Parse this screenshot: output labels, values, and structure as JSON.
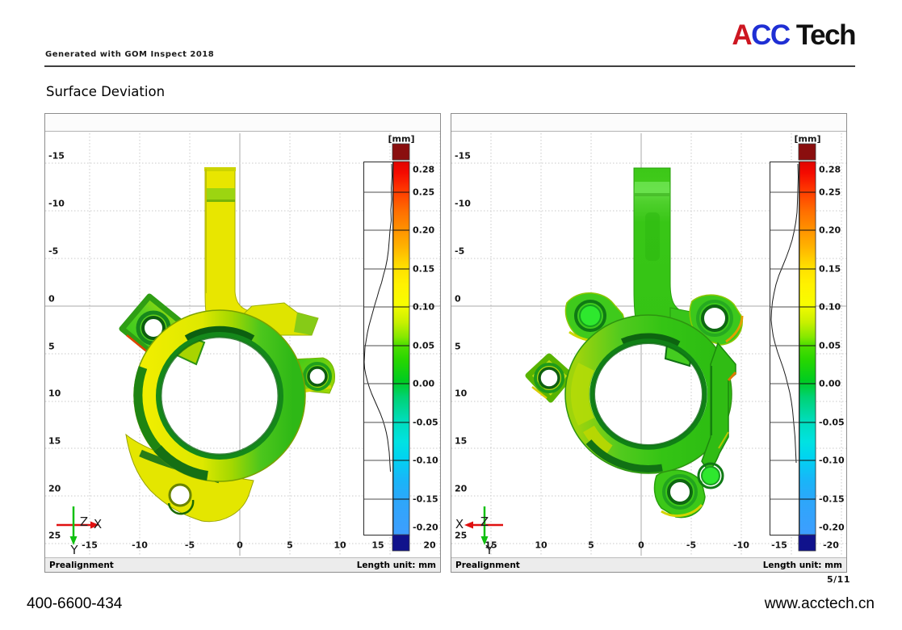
{
  "header": {
    "note": "Generated with GOM Inspect 2018"
  },
  "logo": {
    "part_a": "A",
    "part_cc": "CC",
    "part_tech": " Tech",
    "color_a": "#cd1621",
    "color_cc": "#1f2fd4",
    "color_tech": "#111111"
  },
  "title": "Surface Deviation",
  "footer": {
    "phone": "400-6600-434",
    "website": "www.acctech.cn",
    "page_number": "5/11"
  },
  "colorbar": {
    "unit": "[mm]",
    "ticks": [
      "0.28",
      "0.25",
      "0.20",
      "0.15",
      "0.10",
      "0.05",
      "0.00",
      "-0.05",
      "-0.10",
      "-0.15",
      "-0.20"
    ],
    "over_color": "#8a0e0e",
    "under_color": "#10128c",
    "max_color": "#f40a00",
    "mid_color": "#00cc20",
    "min_color": "#3e9eff"
  },
  "panels": [
    {
      "status_left": "Prealignment",
      "status_right": "Length unit: mm",
      "y_ticks": [
        "-15",
        "-10",
        "-5",
        "0",
        "5",
        "10",
        "15",
        "20",
        "25"
      ],
      "x_ticks": [
        "-15",
        "-10",
        "-5",
        "0",
        "5",
        "10",
        "15",
        "20"
      ],
      "axes": {
        "x": "X",
        "y": "Y",
        "z": "Z"
      }
    },
    {
      "status_left": "Prealignment",
      "status_right": "Length unit: mm",
      "y_ticks": [
        "-15",
        "-10",
        "-5",
        "0",
        "5",
        "10",
        "15",
        "20",
        "25"
      ],
      "x_ticks": [
        "15",
        "10",
        "5",
        "0",
        "-5",
        "-10",
        "-15",
        "-20"
      ],
      "axes": {
        "x": "X",
        "y": "Y",
        "z": "Z"
      }
    }
  ]
}
